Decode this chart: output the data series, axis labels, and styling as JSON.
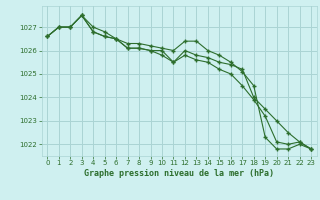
{
  "title": "Graphe pression niveau de la mer (hPa)",
  "background_color": "#cff0f0",
  "grid_color": "#aad4d4",
  "line_color": "#2d6e2d",
  "xlim": [
    -0.5,
    23.5
  ],
  "ylim": [
    1021.5,
    1027.9
  ],
  "yticks": [
    1022,
    1023,
    1024,
    1025,
    1026,
    1027
  ],
  "xticks": [
    0,
    1,
    2,
    3,
    4,
    5,
    6,
    7,
    8,
    9,
    10,
    11,
    12,
    13,
    14,
    15,
    16,
    17,
    18,
    19,
    20,
    21,
    22,
    23
  ],
  "series1": [
    1026.6,
    1027.0,
    1027.0,
    1027.5,
    1026.8,
    1026.6,
    1026.5,
    1026.3,
    1026.3,
    1026.2,
    1026.1,
    1026.0,
    1026.4,
    1026.4,
    1026.0,
    1025.8,
    1025.5,
    1025.1,
    1024.5,
    1022.3,
    1021.8,
    1021.8,
    1022.0,
    1021.8
  ],
  "series2": [
    1026.6,
    1027.0,
    1027.0,
    1027.5,
    1026.8,
    1026.6,
    1026.5,
    1026.1,
    1026.1,
    1026.0,
    1025.8,
    1025.5,
    1025.8,
    1025.6,
    1025.5,
    1025.2,
    1025.0,
    1024.5,
    1023.9,
    1023.2,
    1022.1,
    1022.0,
    1022.1,
    1021.8
  ],
  "series3": [
    1026.6,
    1027.0,
    1027.0,
    1027.5,
    1027.0,
    1026.8,
    1026.5,
    1026.1,
    1026.1,
    1026.0,
    1026.0,
    1025.5,
    1026.0,
    1025.8,
    1025.7,
    1025.5,
    1025.4,
    1025.2,
    1024.0,
    1023.5,
    1023.0,
    1022.5,
    1022.1,
    1021.8
  ]
}
